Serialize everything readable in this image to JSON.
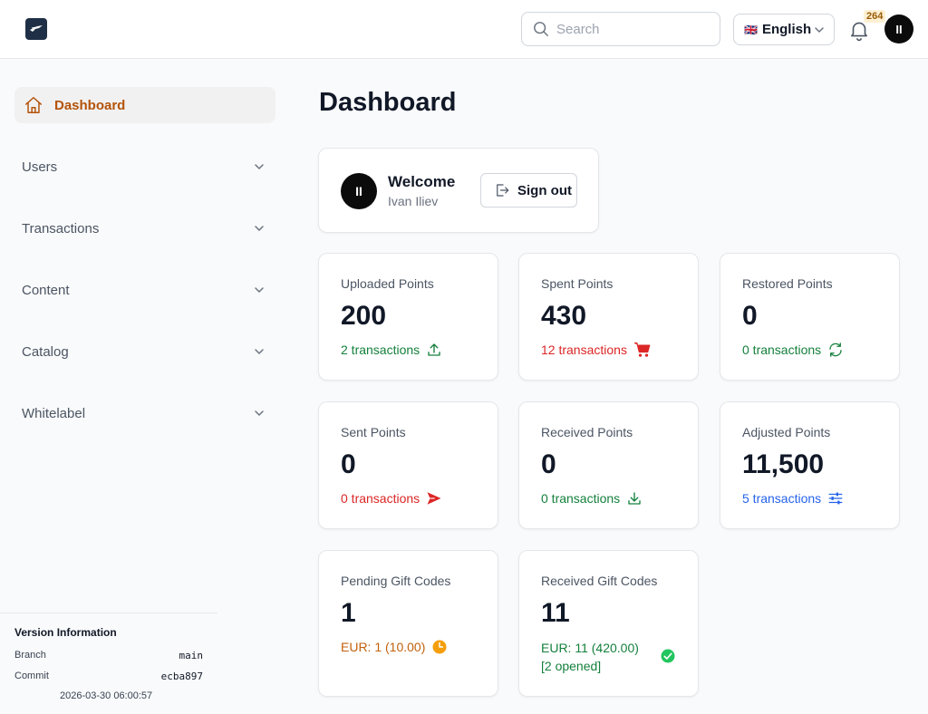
{
  "header": {
    "search_placeholder": "Search",
    "language": {
      "flag": "🇬🇧",
      "label": "English"
    },
    "notifications_count": "264",
    "avatar_initials": "II"
  },
  "sidebar": {
    "items": [
      {
        "label": "Dashboard",
        "active": true,
        "icon": "home-icon"
      },
      {
        "label": "Users"
      },
      {
        "label": "Transactions"
      },
      {
        "label": "Content"
      },
      {
        "label": "Catalog"
      },
      {
        "label": "Whitelabel"
      }
    ],
    "version": {
      "title": "Version Information",
      "branch_label": "Branch",
      "branch_value": "main",
      "commit_label": "Commit",
      "commit_value": "ecba897",
      "date": "2026-03-30 06:00:57"
    }
  },
  "main": {
    "title": "Dashboard",
    "welcome": {
      "avatar_initials": "II",
      "title": "Welcome",
      "name": "Ivan Iliev",
      "signout_label": "Sign out"
    },
    "cards": [
      {
        "title": "Uploaded Points",
        "value": "200",
        "sub": "2 transactions",
        "color": "#15803d",
        "icon": "upload-icon"
      },
      {
        "title": "Spent Points",
        "value": "430",
        "sub": "12 transactions",
        "color": "#dc2626",
        "icon": "cart-icon"
      },
      {
        "title": "Restored Points",
        "value": "0",
        "sub": "0 transactions",
        "color": "#15803d",
        "icon": "refresh-icon"
      },
      {
        "title": "Sent Points",
        "value": "0",
        "sub": "0 transactions",
        "color": "#dc2626",
        "icon": "send-icon"
      },
      {
        "title": "Received Points",
        "value": "0",
        "sub": "0 transactions",
        "color": "#15803d",
        "icon": "download-icon"
      },
      {
        "title": "Adjusted Points",
        "value": "11,500",
        "sub": "5 transactions",
        "color": "#2563eb",
        "icon": "sliders-icon"
      },
      {
        "title": "Pending Gift Codes",
        "value": "1",
        "sub": "EUR: 1 (10.00)",
        "color": "#c2610c",
        "icon": "clock-icon"
      },
      {
        "title": "Received Gift Codes",
        "value": "11",
        "sub": "EUR: 11 (420.00)",
        "sub2": "[2 opened]",
        "color": "#15803d",
        "icon": "check-circle-icon"
      }
    ]
  },
  "colors": {
    "accent": "#b45309",
    "green": "#15803d",
    "red": "#dc2626",
    "blue": "#2563eb",
    "badge_bg": "#fdf0d3"
  }
}
